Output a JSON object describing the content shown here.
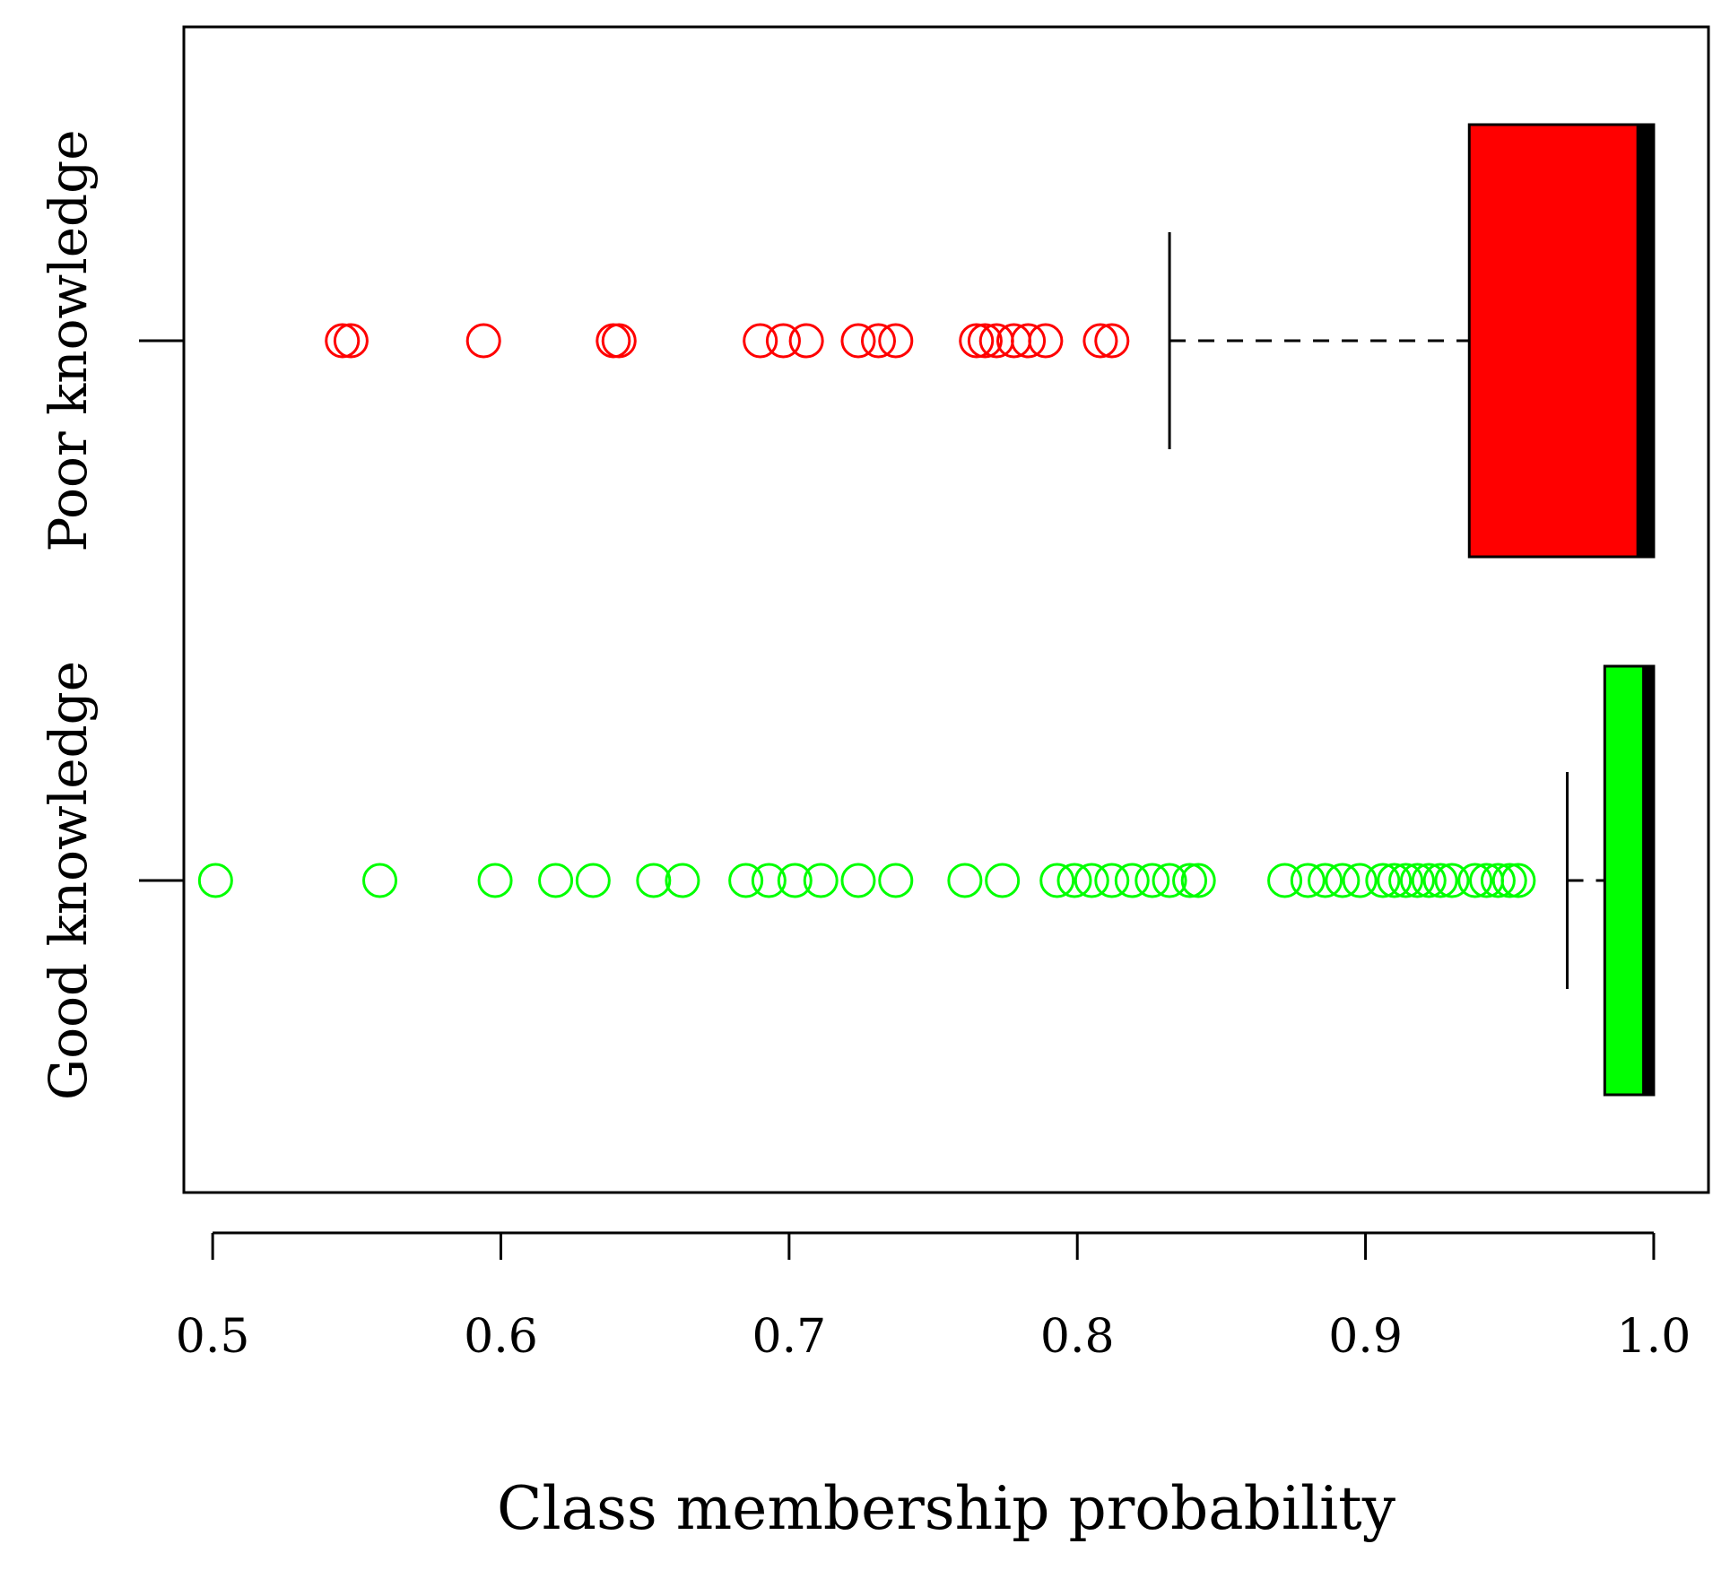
{
  "chart_data": {
    "type": "boxplot",
    "orientation": "horizontal",
    "title": "",
    "xlabel": "Class membership probability",
    "ylabel": "",
    "xlim": [
      0.49,
      1.019
    ],
    "xticks": [
      0.5,
      0.6,
      0.7,
      0.8,
      0.9,
      1.0
    ],
    "xtick_labels": [
      "0.5",
      "0.6",
      "0.7",
      "0.8",
      "0.9",
      "1.0"
    ],
    "grid": false,
    "series": [
      {
        "name": "Poor knowledge",
        "fill_color": "#ff0000",
        "point_color": "#ff0000",
        "q1": 0.936,
        "median": 0.994,
        "q3": 1.0,
        "whisker_low": 0.832,
        "whisker_high": 1.0,
        "outliers": [
          0.545,
          0.548,
          0.594,
          0.639,
          0.641,
          0.69,
          0.698,
          0.706,
          0.724,
          0.731,
          0.737,
          0.765,
          0.768,
          0.772,
          0.778,
          0.783,
          0.789,
          0.808,
          0.812
        ]
      },
      {
        "name": "Good knowledge",
        "fill_color": "#00ff00",
        "point_color": "#00ff00",
        "q1": 0.983,
        "median": 0.996,
        "q3": 1.0,
        "whisker_low": 0.97,
        "whisker_high": 1.0,
        "outliers": [
          0.501,
          0.558,
          0.598,
          0.619,
          0.632,
          0.653,
          0.663,
          0.685,
          0.693,
          0.702,
          0.711,
          0.724,
          0.737,
          0.761,
          0.774,
          0.793,
          0.799,
          0.805,
          0.812,
          0.819,
          0.826,
          0.832,
          0.839,
          0.842,
          0.872,
          0.88,
          0.886,
          0.892,
          0.898,
          0.906,
          0.91,
          0.914,
          0.918,
          0.922,
          0.926,
          0.93,
          0.938,
          0.942,
          0.946,
          0.95,
          0.953
        ]
      }
    ]
  }
}
